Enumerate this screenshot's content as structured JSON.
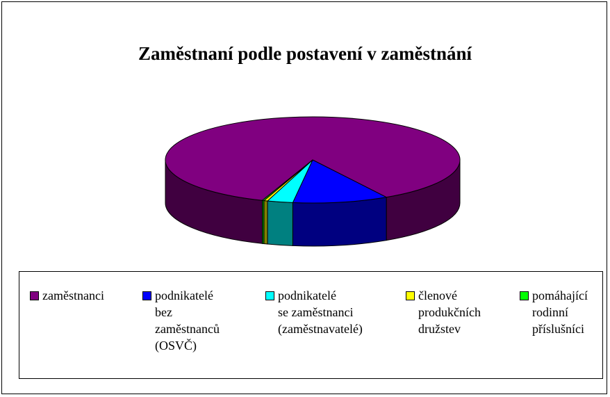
{
  "chart_data": {
    "type": "pie3d",
    "title": "Zaměstnaní podle postavení v zaměstnání",
    "categories": [
      "zaměstnanci",
      "podnikatelé\nbez\nzaměstnanců\n(OSVČ)",
      "podnikatelé\nse zaměstnanci\n(zaměstnavatelé)",
      "členové\nprodukčních\ndružstev",
      "pomáhající\nrodinní\npříslušníci"
    ],
    "values": [
      86.1,
      10.5,
      2.8,
      0.4,
      0.2
    ],
    "colors": [
      "#800080",
      "#0000ff",
      "#00ffff",
      "#ffff00",
      "#00ff00"
    ],
    "side_colors": [
      "#400040",
      "#000080",
      "#008080",
      "#808000",
      "#008000"
    ],
    "legend": "bottom"
  }
}
